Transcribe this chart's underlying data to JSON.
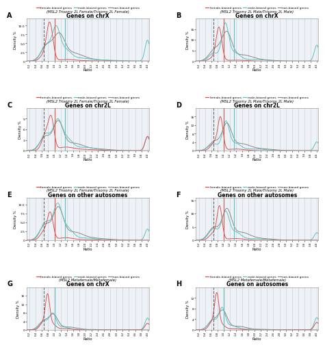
{
  "panels": [
    {
      "label": "A",
      "title": "Genes on chrX",
      "subtitle": "(MSL2 Trisomy 2L Female/Trisomy 2L Female)",
      "ylim": [
        0,
        12
      ],
      "yticks": [
        0,
        2.5,
        5.0,
        7.5,
        10.0
      ],
      "vline_red": 1.0,
      "vline_blue": 1.333,
      "vline_dashed": 0.667
    },
    {
      "label": "B",
      "title": "Genes on chrX",
      "subtitle": "(MSL2 Trisomy 2L Male/Trisomy 2L Male)",
      "ylim": [
        0,
        20
      ],
      "yticks": [
        0,
        5,
        10,
        15
      ],
      "vline_red": 1.0,
      "vline_blue": 1.333,
      "vline_dashed": 0.667
    },
    {
      "label": "C",
      "title": "Genes on chr2L",
      "subtitle": "(MSL2 Trisomy 2L Female/Trisomy 2L Female)",
      "ylim": [
        0,
        12
      ],
      "yticks": [
        0,
        3,
        6,
        9
      ],
      "vline_red": 1.0,
      "vline_blue": 1.333,
      "vline_dashed": 0.667
    },
    {
      "label": "D",
      "title": "Genes on chr2L",
      "subtitle": "(MSL2 Trisomy 2L Male/Trisomy 2L Male)",
      "ylim": [
        0,
        20
      ],
      "yticks": [
        0,
        4,
        8,
        12,
        16
      ],
      "vline_red": 1.0,
      "vline_blue": 1.333,
      "vline_dashed": 0.667
    },
    {
      "label": "E",
      "title": "Genes on other autosomes",
      "subtitle": "(MSL2 Trisomy 2L Female/Trisomy 2L Female)",
      "ylim": [
        0,
        12
      ],
      "yticks": [
        0,
        2.5,
        5.0,
        7.5,
        10.0
      ],
      "vline_red": 1.0,
      "vline_blue": 1.333,
      "vline_dashed": 0.667
    },
    {
      "label": "F",
      "title": "Genes on other autosomes",
      "subtitle": "(MSL2 Trisomy 2L Male/Trisomy 2L Male)",
      "ylim": [
        0,
        16
      ],
      "yticks": [
        0,
        5,
        10,
        15
      ],
      "vline_red": 1.0,
      "vline_blue": 1.333,
      "vline_dashed": 0.667
    },
    {
      "label": "G",
      "title": "Genes on chrX",
      "subtitle": "(MSL2 Metafemale/Metafemale)",
      "ylim": [
        0,
        20
      ],
      "yticks": [
        0,
        4,
        8,
        12,
        16
      ],
      "vline_red": 1.0,
      "vline_blue": 1.0,
      "vline_dashed": 0.667
    },
    {
      "label": "H",
      "title": "Genes on autosomes",
      "subtitle": "(MSL2 Metafemale/Metafemale)",
      "ylim": [
        0,
        16
      ],
      "yticks": [
        0,
        4,
        8,
        12
      ],
      "vline_red": 1.0,
      "vline_blue": 1.0,
      "vline_dashed": 0.667
    }
  ],
  "colors": {
    "female": "#d9534f",
    "male": "#5bc0be",
    "non": "#888888"
  },
  "legend_labels": [
    "female-biased genes",
    "male-biased genes",
    "non-biased genes"
  ],
  "xlabel": "Ratio",
  "ylabel": "Density %",
  "plot_bg": "#eef2f6",
  "grid_color": "#c0ccd8"
}
